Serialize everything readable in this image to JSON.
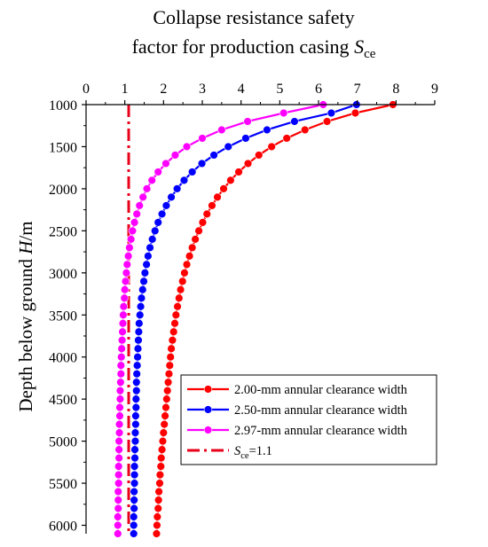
{
  "chart_data": {
    "type": "line",
    "title_lines": [
      "Collapse resistance safety",
      "factor for production casing "
    ],
    "title_var": "S",
    "title_sub": "ce",
    "xlabel": "",
    "ylabel_parts": [
      "Depth below  ground ",
      "H",
      "/m"
    ],
    "xlim": [
      0,
      9
    ],
    "ylim": [
      1000,
      6100
    ],
    "x_ticks": [
      "0",
      "1",
      "2",
      "3",
      "4",
      "5",
      "6",
      "7",
      "8",
      "9"
    ],
    "y_ticks": [
      "1000",
      "1500",
      "2000",
      "2500",
      "3000",
      "3500",
      "4000",
      "4500",
      "5000",
      "5500",
      "6000"
    ],
    "y_axis_inverted": true,
    "x_axis_position": "top",
    "grid": false,
    "legend_position": "bottom-right",
    "series": [
      {
        "name": "2.00-mm annular clearance width",
        "color": "#ff0000",
        "marker": "circle",
        "y": [
          1000,
          1100,
          1200,
          1300,
          1400,
          1500,
          1600,
          1700,
          1800,
          1900,
          2000,
          2100,
          2200,
          2300,
          2400,
          2500,
          2600,
          2700,
          2800,
          2900,
          3000,
          3100,
          3200,
          3300,
          3400,
          3500,
          3600,
          3700,
          3800,
          3900,
          4000,
          4100,
          4200,
          4300,
          4400,
          4500,
          4600,
          4700,
          4800,
          4900,
          5000,
          5100,
          5200,
          5300,
          5400,
          5500,
          5600,
          5700,
          5800,
          5900,
          6000,
          6100
        ],
        "x": [
          7.92,
          6.95,
          6.22,
          5.65,
          5.18,
          4.79,
          4.46,
          4.18,
          3.94,
          3.73,
          3.55,
          3.39,
          3.25,
          3.12,
          3.01,
          2.91,
          2.82,
          2.74,
          2.67,
          2.6,
          2.54,
          2.49,
          2.44,
          2.4,
          2.36,
          2.32,
          2.29,
          2.26,
          2.23,
          2.2,
          2.18,
          2.16,
          2.14,
          2.12,
          2.1,
          2.08,
          2.06,
          2.04,
          2.02,
          2.0,
          1.98,
          1.96,
          1.94,
          1.93,
          1.91,
          1.9,
          1.88,
          1.87,
          1.86,
          1.84,
          1.83,
          1.82
        ]
      },
      {
        "name": "2.50-mm annular clearance width",
        "color": "#0000ff",
        "marker": "circle",
        "y": [
          1000,
          1100,
          1200,
          1300,
          1400,
          1500,
          1600,
          1700,
          1800,
          1900,
          2000,
          2100,
          2200,
          2300,
          2400,
          2500,
          2600,
          2700,
          2800,
          2900,
          3000,
          3100,
          3200,
          3300,
          3400,
          3500,
          3600,
          3700,
          3800,
          3900,
          4000,
          4100,
          4200,
          4300,
          4400,
          4500,
          4600,
          4700,
          4800,
          4900,
          5000,
          5100,
          5200,
          5300,
          5400,
          5500,
          5600,
          5700,
          5800,
          5900,
          6000,
          6100
        ],
        "x": [
          6.98,
          6.33,
          5.38,
          4.67,
          4.12,
          3.67,
          3.3,
          2.99,
          2.74,
          2.53,
          2.35,
          2.2,
          2.07,
          1.96,
          1.86,
          1.78,
          1.71,
          1.65,
          1.6,
          1.56,
          1.52,
          1.49,
          1.46,
          1.43,
          1.41,
          1.39,
          1.37,
          1.36,
          1.35,
          1.34,
          1.33,
          1.32,
          1.31,
          1.3,
          1.3,
          1.29,
          1.29,
          1.28,
          1.28,
          1.27,
          1.27,
          1.26,
          1.26,
          1.25,
          1.25,
          1.25,
          1.24,
          1.24,
          1.24,
          1.23,
          1.23,
          1.23
        ]
      },
      {
        "name": "2.97-mm annular clearance width",
        "color": "#ff00ff",
        "marker": "circle",
        "y": [
          1000,
          1100,
          1200,
          1300,
          1400,
          1500,
          1600,
          1700,
          1800,
          1900,
          2000,
          2100,
          2200,
          2300,
          2400,
          2500,
          2600,
          2700,
          2800,
          2900,
          3000,
          3100,
          3200,
          3300,
          3400,
          3500,
          3600,
          3700,
          3800,
          3900,
          4000,
          4100,
          4200,
          4300,
          4400,
          4500,
          4600,
          4700,
          4800,
          4900,
          5000,
          5100,
          5200,
          5300,
          5400,
          5500,
          5600,
          5700,
          5800,
          5900,
          6000,
          6100
        ],
        "x": [
          6.12,
          5.1,
          4.17,
          3.5,
          3.0,
          2.6,
          2.3,
          2.06,
          1.86,
          1.7,
          1.57,
          1.47,
          1.38,
          1.31,
          1.25,
          1.2,
          1.16,
          1.12,
          1.09,
          1.06,
          1.04,
          1.02,
          1.0,
          0.99,
          0.97,
          0.96,
          0.95,
          0.94,
          0.93,
          0.92,
          0.91,
          0.9,
          0.9,
          0.89,
          0.88,
          0.88,
          0.87,
          0.87,
          0.86,
          0.86,
          0.85,
          0.85,
          0.85,
          0.84,
          0.84,
          0.84,
          0.83,
          0.83,
          0.83,
          0.82,
          0.82,
          0.82
        ]
      },
      {
        "name": "=1.1",
        "name_var": "S",
        "name_sub": "ce",
        "color": "#e8001a",
        "marker": "none",
        "dash": "dash-dot",
        "x": [
          1.1,
          1.1
        ],
        "y": [
          1000,
          6100
        ]
      }
    ]
  }
}
